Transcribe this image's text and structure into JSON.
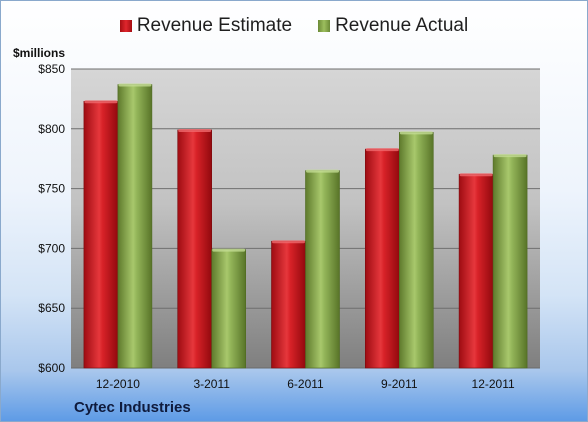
{
  "legend": {
    "estimate_label": "Revenue Estimate",
    "actual_label": "Revenue Actual"
  },
  "unit_label": "$millions",
  "company": "Cytec Industries",
  "colors": {
    "estimate": "#d01f26",
    "actual": "#8aac4e"
  },
  "chart_data": {
    "type": "bar",
    "categories": [
      "12-2010",
      "3-2011",
      "6-2011",
      "9-2011",
      "12-2011"
    ],
    "series": [
      {
        "name": "Revenue Estimate",
        "values": [
          823,
          799,
          706,
          783,
          762
        ]
      },
      {
        "name": "Revenue Actual",
        "values": [
          837,
          699,
          765,
          797,
          778
        ]
      }
    ],
    "ylabel": "$millions",
    "ylim": [
      600,
      850
    ],
    "yticks": [
      600,
      650,
      700,
      750,
      800,
      850
    ],
    "ytick_labels": [
      "$600",
      "$650",
      "$700",
      "$750",
      "$800",
      "$850"
    ],
    "grid": true,
    "legend_position": "top"
  }
}
